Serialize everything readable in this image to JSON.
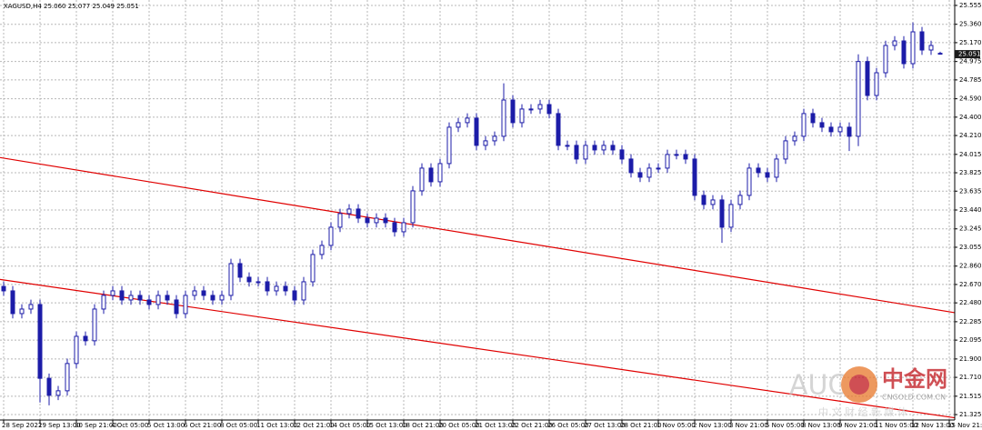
{
  "chart_data": {
    "type": "candlestick",
    "title": "XAGUSD,H4 25.060 25.077 25.049 25.051",
    "color": "#1c1ca8",
    "open": [
      22.65,
      22.604,
      22.369,
      22.416,
      22.463,
      21.7,
      21.524,
      21.571,
      21.853,
      22.134,
      22.088,
      22.416,
      22.557,
      22.604,
      22.51,
      22.557,
      22.51,
      22.463,
      22.557,
      22.51,
      22.369,
      22.557,
      22.604,
      22.557,
      22.51,
      22.557,
      22.886,
      22.745,
      22.698,
      22.698,
      22.604,
      22.651,
      22.604,
      22.51,
      22.698,
      22.98,
      23.074,
      23.262,
      23.403,
      23.45,
      23.356,
      23.309,
      23.356,
      23.309,
      23.215,
      23.309,
      23.638,
      23.873,
      23.732,
      23.92,
      24.296,
      24.343,
      24.39,
      24.108,
      24.155,
      24.202,
      24.577,
      24.343,
      24.484,
      24.484,
      24.53,
      24.437,
      24.108,
      24.108,
      23.967,
      24.108,
      24.061,
      24.108,
      24.061,
      23.967,
      23.826,
      23.779,
      23.873,
      23.873,
      24.014,
      24.014,
      23.967,
      23.591,
      23.497,
      23.544,
      23.262,
      23.497,
      23.591,
      23.873,
      23.826,
      23.779,
      23.967,
      24.155,
      24.202,
      24.437,
      24.343,
      24.296,
      24.249,
      24.296,
      24.202,
      24.975,
      24.624,
      24.859,
      25.141,
      25.188,
      24.953,
      25.282,
      25.094,
      25.06
    ],
    "high": [
      22.7,
      22.654,
      22.466,
      22.513,
      22.513,
      21.75,
      21.621,
      21.903,
      22.184,
      22.184,
      22.466,
      22.607,
      22.654,
      22.654,
      22.607,
      22.607,
      22.56,
      22.607,
      22.607,
      22.56,
      22.607,
      22.654,
      22.654,
      22.607,
      22.607,
      22.936,
      22.936,
      22.795,
      22.748,
      22.748,
      22.701,
      22.701,
      22.654,
      22.748,
      23.03,
      23.124,
      23.312,
      23.453,
      23.5,
      23.5,
      23.406,
      23.406,
      23.406,
      23.359,
      23.359,
      23.688,
      23.923,
      23.923,
      23.97,
      24.346,
      24.393,
      24.44,
      24.44,
      24.205,
      24.252,
      24.75,
      24.627,
      24.534,
      24.534,
      24.58,
      24.58,
      24.487,
      24.158,
      24.158,
      24.158,
      24.158,
      24.158,
      24.158,
      24.111,
      24.017,
      23.876,
      23.923,
      23.923,
      24.064,
      24.064,
      24.064,
      24.017,
      23.641,
      23.594,
      23.594,
      23.547,
      23.641,
      23.923,
      23.923,
      23.876,
      24.017,
      24.205,
      24.252,
      24.487,
      24.487,
      24.393,
      24.346,
      24.346,
      24.346,
      25.05,
      25.025,
      24.909,
      25.191,
      25.238,
      25.238,
      25.38,
      25.332,
      25.191,
      25.077
    ],
    "low": [
      22.554,
      22.319,
      22.319,
      22.366,
      21.45,
      21.42,
      21.474,
      21.521,
      21.803,
      22.038,
      22.038,
      22.366,
      22.507,
      22.46,
      22.46,
      22.46,
      22.413,
      22.413,
      22.46,
      22.319,
      22.319,
      22.507,
      22.507,
      22.46,
      22.46,
      22.507,
      22.695,
      22.648,
      22.648,
      22.554,
      22.554,
      22.554,
      22.46,
      22.46,
      22.648,
      22.93,
      23.024,
      23.212,
      23.353,
      23.306,
      23.259,
      23.259,
      23.259,
      23.165,
      23.165,
      23.259,
      23.588,
      23.682,
      23.682,
      23.87,
      24.246,
      24.293,
      24.058,
      24.058,
      24.105,
      24.152,
      24.293,
      24.293,
      24.434,
      24.434,
      24.387,
      24.058,
      24.058,
      23.917,
      23.917,
      24.011,
      24.011,
      24.011,
      23.917,
      23.776,
      23.729,
      23.729,
      23.823,
      23.823,
      23.964,
      23.917,
      23.541,
      23.447,
      23.447,
      23.1,
      23.212,
      23.447,
      23.541,
      23.776,
      23.729,
      23.729,
      23.917,
      24.105,
      24.152,
      24.293,
      24.246,
      24.199,
      24.199,
      24.05,
      24.1,
      24.574,
      24.574,
      24.809,
      25.091,
      24.903,
      24.903,
      25.044,
      25.044,
      25.049
    ],
    "close": [
      22.604,
      22.369,
      22.416,
      22.463,
      21.7,
      21.524,
      21.571,
      21.853,
      22.134,
      22.088,
      22.416,
      22.557,
      22.604,
      22.51,
      22.557,
      22.51,
      22.463,
      22.557,
      22.51,
      22.369,
      22.557,
      22.604,
      22.557,
      22.51,
      22.557,
      22.886,
      22.745,
      22.698,
      22.698,
      22.604,
      22.651,
      22.604,
      22.51,
      22.698,
      22.98,
      23.074,
      23.262,
      23.403,
      23.45,
      23.356,
      23.309,
      23.356,
      23.309,
      23.215,
      23.309,
      23.638,
      23.873,
      23.732,
      23.92,
      24.296,
      24.343,
      24.39,
      24.108,
      24.155,
      24.202,
      24.577,
      24.343,
      24.484,
      24.484,
      24.53,
      24.437,
      24.108,
      24.108,
      23.967,
      24.108,
      24.061,
      24.108,
      24.061,
      23.967,
      23.826,
      23.779,
      23.873,
      23.873,
      24.014,
      24.014,
      23.967,
      23.591,
      23.497,
      23.544,
      23.262,
      23.497,
      23.591,
      23.873,
      23.826,
      23.779,
      23.967,
      24.155,
      24.202,
      24.437,
      24.343,
      24.296,
      24.249,
      24.296,
      24.202,
      24.975,
      24.624,
      24.859,
      25.141,
      25.188,
      24.953,
      25.282,
      25.094,
      25.141,
      25.051
    ],
    "current_price": 25.051,
    "ylim": [
      21.269,
      25.611
    ],
    "yticks": [
      25.555,
      {
        "value": 25.36,
        "label": "25.360"
      },
      {
        "value": 25.17,
        "label": "25.170"
      },
      24.975,
      24.785,
      {
        "value": 24.59,
        "label": "24.590"
      },
      {
        "value": 24.4,
        "label": "24.400"
      },
      {
        "value": 24.21,
        "label": "24.210"
      },
      24.015,
      23.825,
      23.635,
      {
        "value": 23.44,
        "label": "23.440"
      },
      23.245,
      23.055,
      {
        "value": 22.86,
        "label": "22.860"
      },
      {
        "value": 22.67,
        "label": "22.670"
      },
      {
        "value": 22.48,
        "label": "22.480"
      },
      22.285,
      22.095,
      {
        "value": 21.9,
        "label": "21.900"
      },
      {
        "value": 21.71,
        "label": "21.710"
      },
      21.515,
      21.325
    ],
    "xticks": [
      {
        "value": 0,
        "label": "28 Sep 2021"
      },
      {
        "value": 4,
        "label": "29 Sep 13:00"
      },
      {
        "value": 8,
        "label": "30 Sep 21:00"
      },
      {
        "value": 12,
        "label": "4 Oct 05:00"
      },
      {
        "value": 16,
        "label": "5 Oct 13:00"
      },
      {
        "value": 20,
        "label": "6 Oct 21:00"
      },
      {
        "value": 24,
        "label": "8 Oct 05:00"
      },
      {
        "value": 28,
        "label": "11 Oct 13:00"
      },
      {
        "value": 32,
        "label": "12 Oct 21:00"
      },
      {
        "value": 36,
        "label": "14 Oct 05:00"
      },
      {
        "value": 40,
        "label": "15 Oct 13:00"
      },
      {
        "value": 44,
        "label": "18 Oct 21:00"
      },
      {
        "value": 48,
        "label": "20 Oct 05:00"
      },
      {
        "value": 52,
        "label": "21 Oct 13:00"
      },
      {
        "value": 56,
        "label": "22 Oct 21:00"
      },
      {
        "value": 60,
        "label": "26 Oct 05:00"
      },
      {
        "value": 64,
        "label": "27 Oct 13:00"
      },
      {
        "value": 68,
        "label": "28 Oct 21:00"
      },
      {
        "value": 72,
        "label": "1 Nov 05:00"
      },
      {
        "value": 76,
        "label": "2 Nov 13:00"
      },
      {
        "value": 80,
        "label": "3 Nov 21:00"
      },
      {
        "value": 84,
        "label": "5 Nov 05:00"
      },
      {
        "value": 88,
        "label": "8 Nov 13:00"
      },
      {
        "value": 92,
        "label": "9 Nov 21:00"
      },
      {
        "value": 96,
        "label": "11 Nov 05:00"
      },
      {
        "value": 100,
        "label": "12 Nov 13:00"
      },
      {
        "value": 104,
        "label": "15 Nov 21:00"
      }
    ],
    "grid": true,
    "trendlines": [
      {
        "color": "#e00000",
        "start": [
          0,
          23.976
        ],
        "end": [
          104,
          22.388
        ]
      },
      {
        "color": "#e00000",
        "start": [
          0,
          22.717
        ],
        "end": [
          104,
          21.3
        ]
      }
    ],
    "watermark": {
      "brand": "AUG",
      "name": "中金网",
      "site": "CNGOLD.COM.CN",
      "slogan": "中 文 财 经 新 媒 体"
    }
  }
}
